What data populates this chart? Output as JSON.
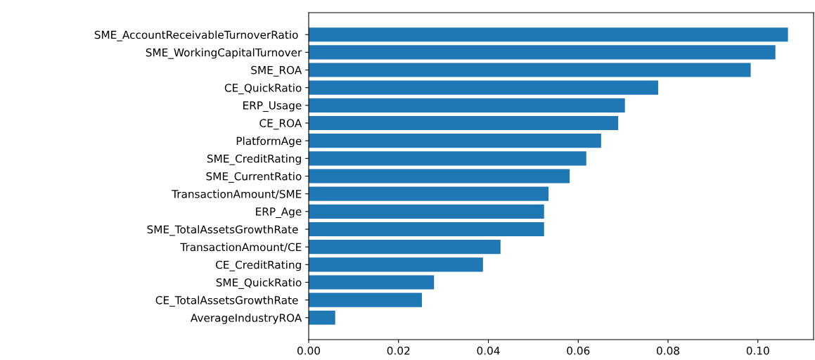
{
  "chart_data": {
    "type": "bar",
    "orientation": "horizontal",
    "categories": [
      "SME_AccountReceivableTurnoverRatio ",
      "SME_WorkingCapitalTurnover",
      "SME_ROA",
      "CE_QuickRatio",
      "ERP_Usage",
      "CE_ROA",
      "PlatformAge",
      "SME_CreditRating",
      "SME_CurrentRatio",
      "TransactionAmount/SME",
      "ERP_Age",
      "SME_TotalAssetsGrowthRate ",
      "TransactionAmount/CE",
      "CE_CreditRating",
      "SME_QuickRatio",
      "CE_TotalAssetsGrowthRate ",
      "AverageIndustryROA"
    ],
    "values": [
      0.1067,
      0.1039,
      0.0984,
      0.0778,
      0.0704,
      0.0689,
      0.0651,
      0.0618,
      0.0581,
      0.0534,
      0.0524,
      0.0524,
      0.0427,
      0.0388,
      0.0279,
      0.0252,
      0.0059
    ],
    "color": "#1f77b4",
    "xlim": [
      0,
      0.1124
    ],
    "xticks": [
      {
        "value": 0,
        "label": "0.00"
      },
      {
        "value": 0.02,
        "label": "0.02"
      },
      {
        "value": 0.04,
        "label": "0.04"
      },
      {
        "value": 0.06,
        "label": "0.06"
      },
      {
        "value": 0.08,
        "label": "0.08"
      },
      {
        "value": 0.1,
        "label": "0.10"
      }
    ]
  }
}
